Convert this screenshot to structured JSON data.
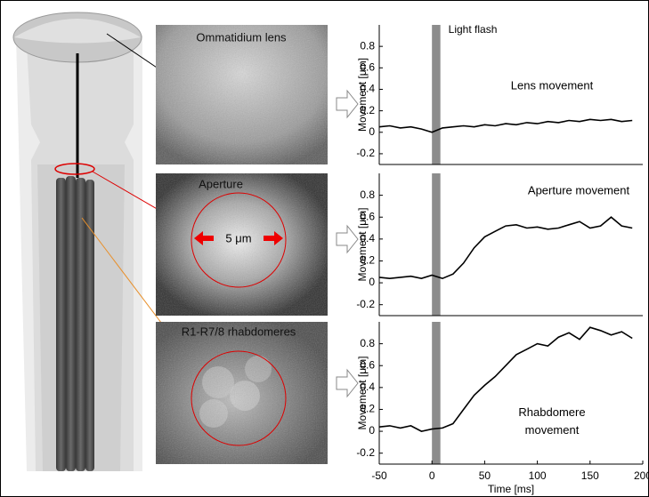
{
  "panels": {
    "lens_label": "Ommatidium lens",
    "aperture_label": "Aperture",
    "scale_label": "5 μm",
    "rhabdomere_label": "R1-R7/8 rhabdomeres"
  },
  "chart_data": [
    {
      "type": "line",
      "annotation": "Light flash",
      "title": "Lens movement",
      "ylabel": "Movement [μm]",
      "x": [
        -50,
        -40,
        -30,
        -20,
        -10,
        0,
        10,
        20,
        30,
        40,
        50,
        60,
        70,
        80,
        90,
        100,
        110,
        120,
        130,
        140,
        150,
        160,
        170,
        180,
        190
      ],
      "values": [
        0.05,
        0.06,
        0.04,
        0.05,
        0.03,
        0.0,
        0.04,
        0.05,
        0.06,
        0.05,
        0.07,
        0.06,
        0.08,
        0.07,
        0.09,
        0.08,
        0.1,
        0.09,
        0.11,
        0.1,
        0.12,
        0.11,
        0.12,
        0.1,
        0.11
      ],
      "color": "#000000",
      "flash": [
        0,
        8
      ],
      "flash_color": "#8c8c8c",
      "xlim": [
        -50,
        200
      ],
      "ylim": [
        -0.3,
        1
      ],
      "yticks": [
        -0.2,
        0,
        0.2,
        0.4,
        0.6,
        0.8
      ]
    },
    {
      "type": "line",
      "title": "Aperture movement",
      "ylabel": "Movement [μm]",
      "x": [
        -50,
        -40,
        -30,
        -20,
        -10,
        0,
        10,
        20,
        30,
        40,
        50,
        60,
        70,
        80,
        90,
        100,
        110,
        120,
        130,
        140,
        150,
        160,
        170,
        180,
        190
      ],
      "values": [
        0.05,
        0.04,
        0.05,
        0.06,
        0.04,
        0.07,
        0.04,
        0.08,
        0.18,
        0.32,
        0.42,
        0.47,
        0.52,
        0.53,
        0.5,
        0.51,
        0.49,
        0.5,
        0.53,
        0.56,
        0.5,
        0.52,
        0.6,
        0.52,
        0.5
      ],
      "color": "#000000",
      "flash": [
        0,
        8
      ],
      "flash_color": "#8c8c8c",
      "xlim": [
        -50,
        200
      ],
      "ylim": [
        -0.3,
        1
      ],
      "yticks": [
        -0.2,
        0,
        0.2,
        0.4,
        0.6,
        0.8
      ]
    },
    {
      "type": "line",
      "title": "Rhabdomere movement",
      "ylabel": "Movement [μm]",
      "xlabel": "Time [ms]",
      "x": [
        -50,
        -40,
        -30,
        -20,
        -10,
        0,
        10,
        20,
        30,
        40,
        50,
        60,
        70,
        80,
        90,
        100,
        110,
        120,
        130,
        140,
        150,
        160,
        170,
        180,
        190
      ],
      "values": [
        0.04,
        0.05,
        0.03,
        0.05,
        0.0,
        0.02,
        0.03,
        0.07,
        0.2,
        0.33,
        0.42,
        0.5,
        0.6,
        0.7,
        0.75,
        0.8,
        0.78,
        0.86,
        0.9,
        0.84,
        0.95,
        0.92,
        0.88,
        0.91,
        0.85
      ],
      "color": "#000000",
      "flash": [
        0,
        8
      ],
      "flash_color": "#8c8c8c",
      "xlim": [
        -50,
        200
      ],
      "ylim": [
        -0.3,
        1
      ],
      "yticks": [
        -0.2,
        0,
        0.2,
        0.4,
        0.6,
        0.8
      ],
      "xticks": [
        -50,
        0,
        50,
        100,
        150,
        200
      ]
    }
  ]
}
